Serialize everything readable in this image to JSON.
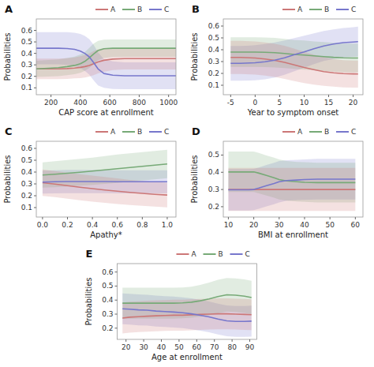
{
  "chart_data": [
    {
      "type": "line",
      "title": "A",
      "xlabel": "CAP score at enrollment",
      "ylabel": "Probabilities",
      "xlim": [
        100,
        1050
      ],
      "xticks": [
        200,
        400,
        600,
        800,
        1000
      ],
      "ylim": [
        0.04,
        0.7
      ],
      "yticks": [
        0.1,
        0.2,
        0.3,
        0.4,
        0.5,
        0.6
      ],
      "grid": false,
      "legend": "upper right",
      "x": [
        100,
        180,
        250,
        310,
        360,
        400,
        430,
        460,
        490,
        520,
        560,
        620,
        700,
        800,
        900,
        1000,
        1050
      ],
      "series": [
        {
          "name": "A",
          "color": "#cc7777",
          "values": [
            0.265,
            0.265,
            0.265,
            0.268,
            0.272,
            0.278,
            0.285,
            0.295,
            0.31,
            0.325,
            0.34,
            0.35,
            0.355,
            0.355,
            0.355,
            0.355,
            0.355
          ],
          "lower": [
            0.175,
            0.175,
            0.175,
            0.178,
            0.182,
            0.185,
            0.19,
            0.198,
            0.21,
            0.225,
            0.24,
            0.255,
            0.26,
            0.26,
            0.26,
            0.26,
            0.26
          ],
          "upper": [
            0.355,
            0.355,
            0.355,
            0.358,
            0.365,
            0.375,
            0.385,
            0.4,
            0.42,
            0.435,
            0.445,
            0.445,
            0.445,
            0.445,
            0.445,
            0.445,
            0.445
          ]
        },
        {
          "name": "B",
          "color": "#77aa77",
          "values": [
            0.265,
            0.27,
            0.275,
            0.285,
            0.295,
            0.31,
            0.33,
            0.36,
            0.395,
            0.425,
            0.44,
            0.445,
            0.445,
            0.445,
            0.445,
            0.445,
            0.445
          ],
          "lower": [
            0.195,
            0.198,
            0.202,
            0.21,
            0.218,
            0.23,
            0.248,
            0.272,
            0.305,
            0.34,
            0.36,
            0.368,
            0.37,
            0.37,
            0.37,
            0.37,
            0.37
          ],
          "upper": [
            0.335,
            0.342,
            0.348,
            0.36,
            0.372,
            0.39,
            0.412,
            0.448,
            0.485,
            0.51,
            0.52,
            0.522,
            0.522,
            0.522,
            0.522,
            0.522,
            0.522
          ]
        },
        {
          "name": "C",
          "color": "#7777cc",
          "values": [
            0.445,
            0.445,
            0.445,
            0.442,
            0.435,
            0.42,
            0.4,
            0.37,
            0.32,
            0.265,
            0.225,
            0.21,
            0.205,
            0.205,
            0.205,
            0.205,
            0.205
          ],
          "lower": [
            0.305,
            0.305,
            0.305,
            0.3,
            0.29,
            0.27,
            0.248,
            0.215,
            0.165,
            0.12,
            0.1,
            0.09,
            0.088,
            0.088,
            0.088,
            0.088,
            0.088
          ],
          "upper": [
            0.585,
            0.585,
            0.585,
            0.585,
            0.58,
            0.57,
            0.552,
            0.525,
            0.475,
            0.41,
            0.35,
            0.33,
            0.322,
            0.322,
            0.322,
            0.322,
            0.322
          ]
        }
      ]
    },
    {
      "type": "line",
      "title": "B",
      "xlabel": "Year to symptom onset",
      "ylabel": "Probabilities",
      "xlim": [
        -6.5,
        22
      ],
      "xticks": [
        -5,
        0,
        5,
        10,
        15,
        20
      ],
      "ylim": [
        0.02,
        0.66
      ],
      "yticks": [
        0.1,
        0.2,
        0.3,
        0.4,
        0.5,
        0.6
      ],
      "grid": false,
      "legend": "upper right",
      "x": [
        -5,
        -3,
        -1,
        0,
        2,
        4,
        6,
        8,
        10,
        12,
        14,
        16,
        18,
        20,
        21
      ],
      "series": [
        {
          "name": "A",
          "color": "#cc7777",
          "values": [
            0.335,
            0.335,
            0.332,
            0.33,
            0.322,
            0.31,
            0.293,
            0.272,
            0.25,
            0.232,
            0.215,
            0.205,
            0.198,
            0.196,
            0.195
          ],
          "lower": [
            0.195,
            0.195,
            0.192,
            0.19,
            0.182,
            0.17,
            0.153,
            0.135,
            0.118,
            0.105,
            0.095,
            0.088,
            0.082,
            0.08,
            0.08
          ],
          "upper": [
            0.475,
            0.475,
            0.472,
            0.47,
            0.462,
            0.45,
            0.433,
            0.408,
            0.382,
            0.358,
            0.338,
            0.322,
            0.312,
            0.308,
            0.308
          ]
        },
        {
          "name": "B",
          "color": "#77aa77",
          "values": [
            0.38,
            0.38,
            0.38,
            0.38,
            0.378,
            0.375,
            0.368,
            0.36,
            0.355,
            0.348,
            0.342,
            0.336,
            0.332,
            0.33,
            0.33
          ],
          "lower": [
            0.255,
            0.255,
            0.255,
            0.255,
            0.253,
            0.25,
            0.245,
            0.238,
            0.232,
            0.226,
            0.22,
            0.215,
            0.21,
            0.208,
            0.208
          ],
          "upper": [
            0.505,
            0.505,
            0.505,
            0.505,
            0.503,
            0.5,
            0.492,
            0.482,
            0.478,
            0.47,
            0.465,
            0.458,
            0.454,
            0.452,
            0.452
          ]
        },
        {
          "name": "C",
          "color": "#7777cc",
          "values": [
            0.285,
            0.285,
            0.288,
            0.29,
            0.298,
            0.312,
            0.332,
            0.358,
            0.382,
            0.408,
            0.432,
            0.448,
            0.46,
            0.465,
            0.468
          ],
          "lower": [
            0.138,
            0.138,
            0.14,
            0.142,
            0.15,
            0.165,
            0.188,
            0.218,
            0.248,
            0.278,
            0.305,
            0.322,
            0.334,
            0.34,
            0.342
          ],
          "upper": [
            0.432,
            0.432,
            0.435,
            0.438,
            0.448,
            0.462,
            0.478,
            0.498,
            0.518,
            0.538,
            0.558,
            0.572,
            0.584,
            0.59,
            0.595
          ]
        }
      ]
    },
    {
      "type": "line",
      "title": "C",
      "xlabel": "Apathy*",
      "ylabel": "Probabilities",
      "xlim": [
        -0.05,
        1.07
      ],
      "xticks": [
        {
          "value": 0,
          "label": "0.0"
        },
        0.2,
        0.4,
        0.6,
        0.8,
        {
          "value": 1,
          "label": "1.0"
        }
      ],
      "ylim": [
        0.02,
        0.66
      ],
      "yticks": [
        0.1,
        0.2,
        0.3,
        0.4,
        0.5,
        0.6
      ],
      "grid": false,
      "legend": "upper right",
      "x": [
        0.0,
        0.1,
        0.2,
        0.3,
        0.4,
        0.5,
        0.6,
        0.7,
        0.8,
        0.9,
        1.0
      ],
      "series": [
        {
          "name": "A",
          "color": "#cc7777",
          "values": [
            0.31,
            0.298,
            0.285,
            0.272,
            0.26,
            0.248,
            0.238,
            0.228,
            0.22,
            0.212,
            0.206
          ],
          "lower": [
            0.198,
            0.188,
            0.175,
            0.162,
            0.15,
            0.14,
            0.13,
            0.122,
            0.115,
            0.108,
            0.102
          ],
          "upper": [
            0.422,
            0.408,
            0.395,
            0.382,
            0.37,
            0.358,
            0.346,
            0.334,
            0.325,
            0.316,
            0.31
          ]
        },
        {
          "name": "B",
          "color": "#77aa77",
          "values": [
            0.375,
            0.382,
            0.39,
            0.398,
            0.408,
            0.418,
            0.428,
            0.438,
            0.448,
            0.458,
            0.468
          ],
          "lower": [
            0.268,
            0.272,
            0.278,
            0.285,
            0.292,
            0.3,
            0.308,
            0.318,
            0.328,
            0.338,
            0.348
          ],
          "upper": [
            0.482,
            0.492,
            0.502,
            0.512,
            0.522,
            0.535,
            0.548,
            0.558,
            0.568,
            0.578,
            0.588
          ]
        },
        {
          "name": "C",
          "color": "#7777cc",
          "values": [
            0.315,
            0.318,
            0.32,
            0.32,
            0.32,
            0.32,
            0.318,
            0.318,
            0.318,
            0.318,
            0.318
          ],
          "lower": [
            0.218,
            0.22,
            0.222,
            0.222,
            0.222,
            0.222,
            0.22,
            0.22,
            0.22,
            0.22,
            0.22
          ],
          "upper": [
            0.412,
            0.415,
            0.418,
            0.418,
            0.418,
            0.418,
            0.415,
            0.415,
            0.415,
            0.415,
            0.415
          ]
        }
      ]
    },
    {
      "type": "line",
      "title": "D",
      "xlabel": "BMI at enrollment",
      "ylabel": "Probabilities",
      "xlim": [
        8,
        63
      ],
      "xticks": [
        10,
        20,
        30,
        40,
        50,
        60
      ],
      "ylim": [
        0.14,
        0.58
      ],
      "yticks": [
        0.2,
        0.3,
        0.4,
        0.5
      ],
      "grid": false,
      "legend": "upper right",
      "x": [
        10,
        15,
        18,
        20,
        22,
        25,
        28,
        30,
        33,
        37,
        40,
        45,
        50,
        55,
        60
      ],
      "series": [
        {
          "name": "A",
          "color": "#cc7777",
          "values": [
            0.3,
            0.3,
            0.3,
            0.3,
            0.3,
            0.3,
            0.3,
            0.3,
            0.3,
            0.3,
            0.3,
            0.3,
            0.3,
            0.3,
            0.3
          ],
          "lower": [
            0.175,
            0.175,
            0.175,
            0.175,
            0.175,
            0.175,
            0.175,
            0.175,
            0.175,
            0.175,
            0.175,
            0.175,
            0.175,
            0.175,
            0.175
          ],
          "upper": [
            0.425,
            0.425,
            0.425,
            0.425,
            0.425,
            0.425,
            0.425,
            0.425,
            0.425,
            0.425,
            0.425,
            0.425,
            0.425,
            0.425,
            0.425
          ]
        },
        {
          "name": "B",
          "color": "#77aa77",
          "values": [
            0.402,
            0.402,
            0.402,
            0.402,
            0.395,
            0.382,
            0.368,
            0.358,
            0.35,
            0.345,
            0.342,
            0.34,
            0.34,
            0.34,
            0.34
          ],
          "lower": [
            0.285,
            0.285,
            0.285,
            0.285,
            0.278,
            0.265,
            0.252,
            0.242,
            0.235,
            0.23,
            0.228,
            0.225,
            0.225,
            0.225,
            0.225
          ],
          "upper": [
            0.52,
            0.52,
            0.52,
            0.52,
            0.512,
            0.498,
            0.485,
            0.475,
            0.465,
            0.46,
            0.458,
            0.455,
            0.455,
            0.455,
            0.455
          ]
        },
        {
          "name": "C",
          "color": "#7777cc",
          "values": [
            0.298,
            0.298,
            0.298,
            0.3,
            0.308,
            0.322,
            0.335,
            0.345,
            0.352,
            0.355,
            0.358,
            0.36,
            0.36,
            0.36,
            0.36
          ],
          "lower": [
            0.178,
            0.178,
            0.178,
            0.18,
            0.188,
            0.202,
            0.215,
            0.225,
            0.235,
            0.238,
            0.24,
            0.242,
            0.242,
            0.242,
            0.242
          ],
          "upper": [
            0.418,
            0.418,
            0.418,
            0.42,
            0.428,
            0.442,
            0.455,
            0.465,
            0.47,
            0.472,
            0.475,
            0.478,
            0.478,
            0.478,
            0.478
          ]
        }
      ]
    },
    {
      "type": "line",
      "title": "E",
      "xlabel": "Age at enrollment",
      "ylabel": "Probabilities",
      "xlim": [
        15,
        94
      ],
      "xticks": [
        20,
        30,
        40,
        50,
        60,
        70,
        80,
        90
      ],
      "ylim": [
        0.12,
        0.66
      ],
      "yticks": [
        0.2,
        0.3,
        0.4,
        0.5,
        0.6
      ],
      "grid": false,
      "legend": "upper right",
      "x": [
        18,
        22,
        27,
        32,
        37,
        42,
        47,
        52,
        57,
        62,
        67,
        72,
        77,
        82,
        87,
        91
      ],
      "series": [
        {
          "name": "A",
          "color": "#cc7777",
          "values": [
            0.272,
            0.278,
            0.282,
            0.285,
            0.288,
            0.29,
            0.292,
            0.292,
            0.295,
            0.298,
            0.3,
            0.302,
            0.302,
            0.3,
            0.298,
            0.296
          ],
          "lower": [
            0.162,
            0.168,
            0.172,
            0.175,
            0.178,
            0.18,
            0.182,
            0.182,
            0.185,
            0.188,
            0.19,
            0.192,
            0.192,
            0.19,
            0.188,
            0.186
          ],
          "upper": [
            0.382,
            0.388,
            0.392,
            0.395,
            0.398,
            0.4,
            0.402,
            0.402,
            0.405,
            0.408,
            0.41,
            0.412,
            0.412,
            0.41,
            0.408,
            0.406
          ]
        },
        {
          "name": "B",
          "color": "#77aa77",
          "values": [
            0.378,
            0.378,
            0.378,
            0.378,
            0.378,
            0.378,
            0.378,
            0.38,
            0.385,
            0.395,
            0.408,
            0.425,
            0.438,
            0.435,
            0.428,
            0.418
          ],
          "lower": [
            0.268,
            0.268,
            0.268,
            0.268,
            0.268,
            0.268,
            0.268,
            0.27,
            0.275,
            0.282,
            0.292,
            0.305,
            0.318,
            0.315,
            0.308,
            0.298
          ],
          "upper": [
            0.488,
            0.488,
            0.488,
            0.488,
            0.488,
            0.488,
            0.488,
            0.49,
            0.495,
            0.508,
            0.525,
            0.545,
            0.558,
            0.555,
            0.548,
            0.538
          ]
        },
        {
          "name": "C",
          "color": "#7777cc",
          "values": [
            0.338,
            0.335,
            0.33,
            0.328,
            0.322,
            0.318,
            0.315,
            0.31,
            0.302,
            0.292,
            0.28,
            0.265,
            0.252,
            0.248,
            0.248,
            0.25
          ],
          "lower": [
            0.228,
            0.225,
            0.22,
            0.218,
            0.212,
            0.208,
            0.205,
            0.2,
            0.192,
            0.182,
            0.17,
            0.155,
            0.142,
            0.138,
            0.138,
            0.14
          ],
          "upper": [
            0.448,
            0.445,
            0.44,
            0.438,
            0.432,
            0.428,
            0.425,
            0.42,
            0.412,
            0.402,
            0.39,
            0.375,
            0.362,
            0.358,
            0.358,
            0.36
          ]
        }
      ]
    }
  ]
}
